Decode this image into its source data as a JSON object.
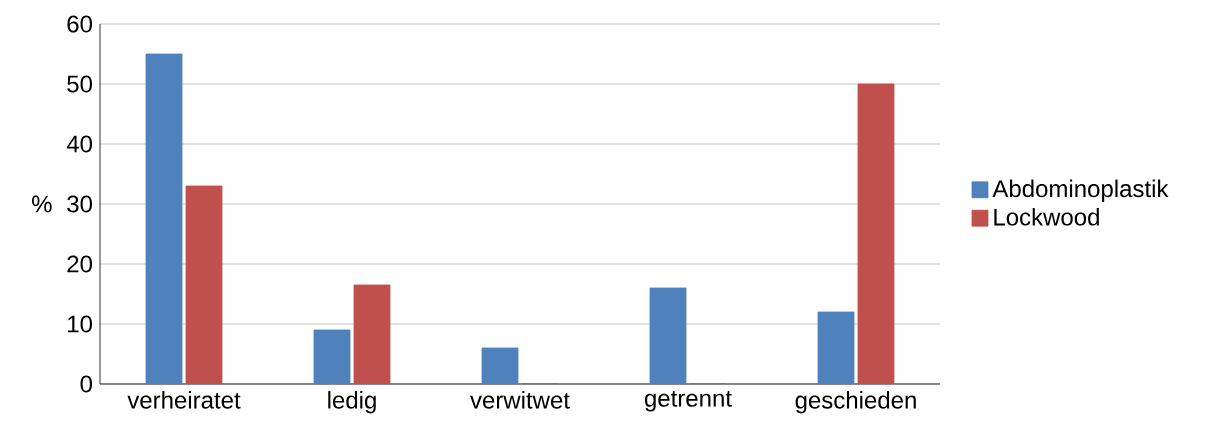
{
  "chart_data": {
    "type": "bar",
    "ylabel": "%",
    "categories": [
      "verheiratet",
      "ledig",
      "verwitwet",
      "getrennt",
      "geschieden"
    ],
    "series": [
      {
        "name": "Abdominoplastik",
        "color": "#4f81bd",
        "values": [
          55,
          9,
          6,
          16,
          12
        ]
      },
      {
        "name": "Lockwood",
        "color": "#c0504d",
        "values": [
          33,
          16.5,
          0,
          0,
          50
        ]
      }
    ],
    "ylim": [
      0,
      60
    ],
    "yticks": [
      0,
      10,
      20,
      30,
      40,
      50,
      60
    ],
    "grid": "y",
    "legend": "right"
  }
}
